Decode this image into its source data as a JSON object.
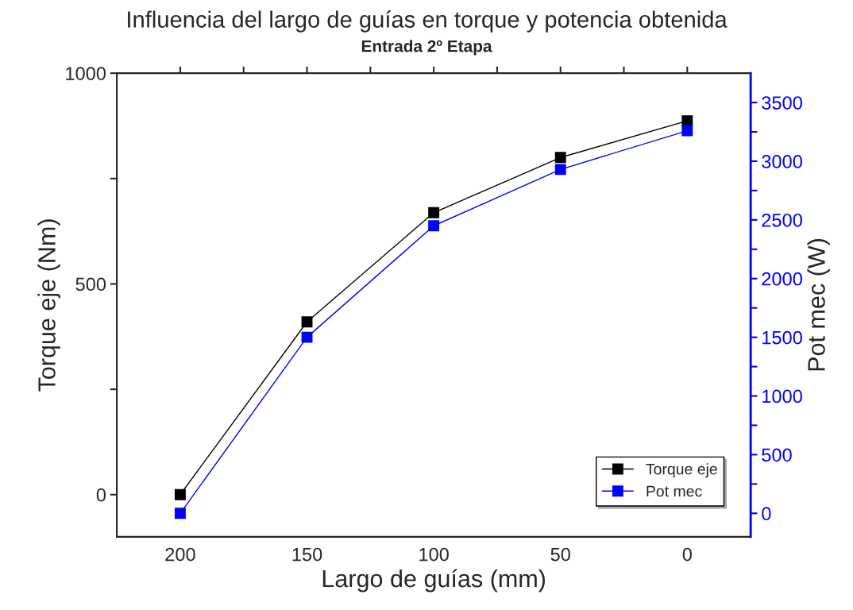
{
  "chart_data": {
    "type": "line",
    "title": "Influencia del largo de guías en torque y potencia obtenida",
    "subtitle": "Entrada 2º Etapa",
    "xlabel": "Largo de guías (mm)",
    "ylabel": "Torque eje (Nm)",
    "y2label": "Pot mec (W)",
    "x": [
      200,
      150,
      100,
      50,
      0
    ],
    "series": [
      {
        "name": "Torque eje",
        "color": "#000000",
        "values": [
          0,
          410,
          669,
          800,
          887
        ]
      },
      {
        "name": "Pot mec",
        "color": "#0000ff",
        "axis": "y2",
        "values": [
          0,
          1500,
          2450,
          2930,
          3260
        ]
      }
    ],
    "xlim": [
      225,
      -25
    ],
    "xticks": [
      200,
      {
        "value": 175,
        "label": null
      },
      150,
      {
        "value": 125,
        "label": null
      },
      100,
      {
        "value": 75,
        "label": null
      },
      50,
      {
        "value": 25,
        "label": null
      },
      0
    ],
    "ylim": [
      -100,
      1000
    ],
    "yticks": [
      0,
      {
        "value": 250,
        "label": null
      },
      500,
      {
        "value": 750,
        "label": null
      },
      1000
    ],
    "y2lim": [
      -200,
      3750
    ],
    "y2ticks": [
      0,
      {
        "value": 250,
        "label": null
      },
      500,
      {
        "value": 750,
        "label": null
      },
      1000,
      {
        "value": 1250,
        "label": null
      },
      1500,
      {
        "value": 1750,
        "label": null
      },
      2000,
      {
        "value": 2250,
        "label": null
      },
      2500,
      {
        "value": 2750,
        "label": null
      },
      3000,
      {
        "value": 3250,
        "label": null
      },
      3500
    ],
    "marker": "square",
    "line_style": "solid",
    "grid": false,
    "legend": "bottom right"
  }
}
